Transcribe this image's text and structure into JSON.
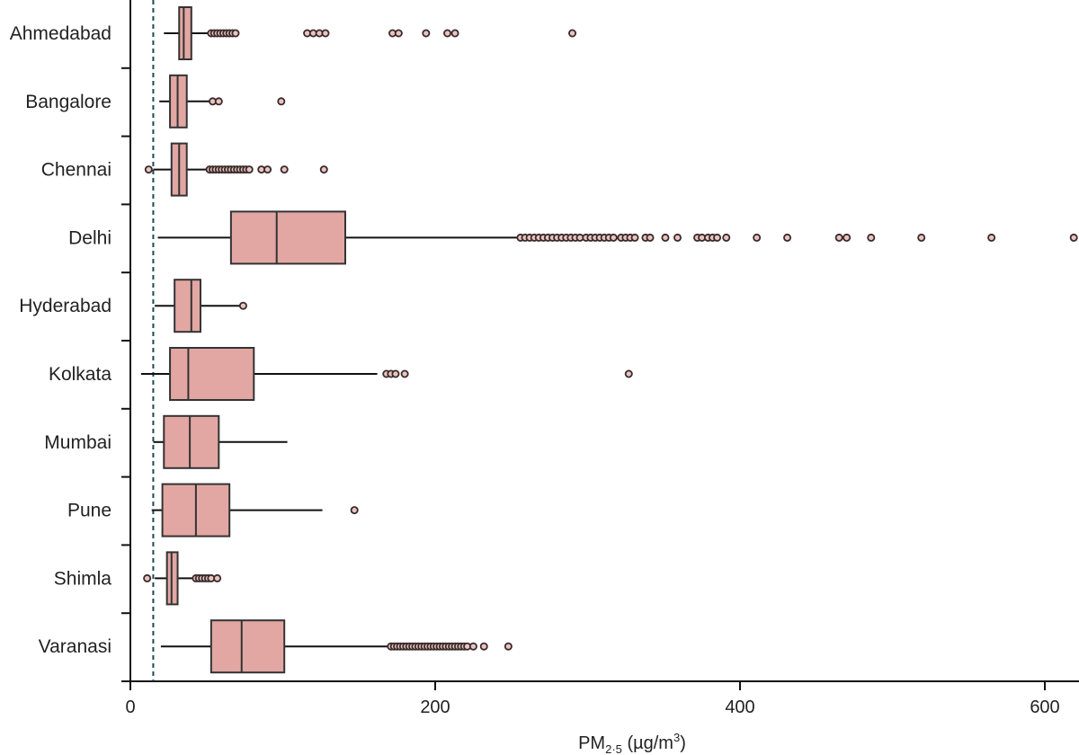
{
  "colors": {
    "box_fill": "#e2a7a3",
    "box_stroke": "#333333",
    "whisker": "#111111",
    "outlier_fill": "#e8c4c2",
    "outlier_stroke": "#3a2a2a",
    "reference_line": "#1f4a55",
    "axis": "#111111"
  },
  "chart_data": {
    "type": "boxplot",
    "orientation": "horizontal",
    "title": "",
    "xlabel_main": "PM",
    "xlabel_sub": "2·5",
    "xlabel_unit_open": " (µg/m",
    "xlabel_unit_sup": "3",
    "xlabel_unit_close": ")",
    "ylabel": "",
    "xlim": [
      0,
      620
    ],
    "xticks": [
      0,
      200,
      400,
      600
    ],
    "xtick_labels": [
      "0",
      "200",
      "400",
      "600"
    ],
    "reference_line": {
      "x": 15,
      "style": "dashed"
    },
    "categories": [
      "Ahmedabad",
      "Bangalore",
      "Chennai",
      "Delhi",
      "Hyderabad",
      "Kolkata",
      "Mumbai",
      "Pune",
      "Shimla",
      "Varanasi"
    ],
    "boxes": [
      {
        "name": "Ahmedabad",
        "whisker_low": 22,
        "q1": 32,
        "median": 35,
        "q3": 40,
        "whisker_high": 52,
        "outliers": [
          53,
          55,
          57,
          59,
          61,
          63,
          65,
          67,
          69,
          116,
          120,
          124,
          128,
          172,
          176,
          194,
          208,
          213,
          290
        ]
      },
      {
        "name": "Bangalore",
        "whisker_low": 19,
        "q1": 26,
        "median": 31,
        "q3": 37,
        "whisker_high": 52,
        "outliers": [
          54,
          58,
          99
        ]
      },
      {
        "name": "Chennai",
        "whisker_low": 15,
        "q1": 27,
        "median": 32,
        "q3": 37,
        "whisker_high": 50,
        "outliers": [
          12,
          52,
          54,
          56,
          58,
          60,
          62,
          64,
          66,
          68,
          70,
          72,
          74,
          76,
          78,
          86,
          90,
          101,
          127
        ]
      },
      {
        "name": "Delhi",
        "whisker_low": 18,
        "q1": 66,
        "median": 96,
        "q3": 141,
        "whisker_high": 254,
        "outliers": [
          256,
          259,
          262,
          265,
          268,
          271,
          274,
          277,
          280,
          283,
          286,
          289,
          292,
          295,
          299,
          302,
          305,
          308,
          311,
          314,
          317,
          322,
          325,
          328,
          331,
          338,
          341,
          351,
          359,
          372,
          375,
          379,
          382,
          385,
          391,
          411,
          431,
          465,
          470,
          486,
          519,
          565,
          619
        ]
      },
      {
        "name": "Hyderabad",
        "whisker_low": 16,
        "q1": 29,
        "median": 40,
        "q3": 46,
        "whisker_high": 72,
        "outliers": [
          74
        ]
      },
      {
        "name": "Kolkata",
        "whisker_low": 7,
        "q1": 26,
        "median": 38,
        "q3": 81,
        "whisker_high": 162,
        "outliers": [
          168,
          171,
          174,
          180,
          327
        ]
      },
      {
        "name": "Mumbai",
        "whisker_low": 15,
        "q1": 22,
        "median": 39,
        "q3": 58,
        "whisker_high": 103,
        "outliers": []
      },
      {
        "name": "Pune",
        "whisker_low": 14,
        "q1": 21,
        "median": 43,
        "q3": 65,
        "whisker_high": 126,
        "outliers": [
          147
        ]
      },
      {
        "name": "Shimla",
        "whisker_low": 16,
        "q1": 24,
        "median": 27,
        "q3": 31,
        "whisker_high": 41,
        "outliers": [
          11,
          43,
          45,
          47,
          49,
          51,
          53,
          57
        ]
      },
      {
        "name": "Varanasi",
        "whisker_low": 20,
        "q1": 53,
        "median": 73,
        "q3": 101,
        "whisker_high": 170,
        "outliers": [
          171,
          173,
          175,
          177,
          179,
          181,
          183,
          185,
          187,
          189,
          191,
          193,
          195,
          197,
          199,
          201,
          203,
          205,
          207,
          209,
          211,
          213,
          215,
          217,
          219,
          221,
          225,
          232,
          248
        ]
      }
    ]
  }
}
